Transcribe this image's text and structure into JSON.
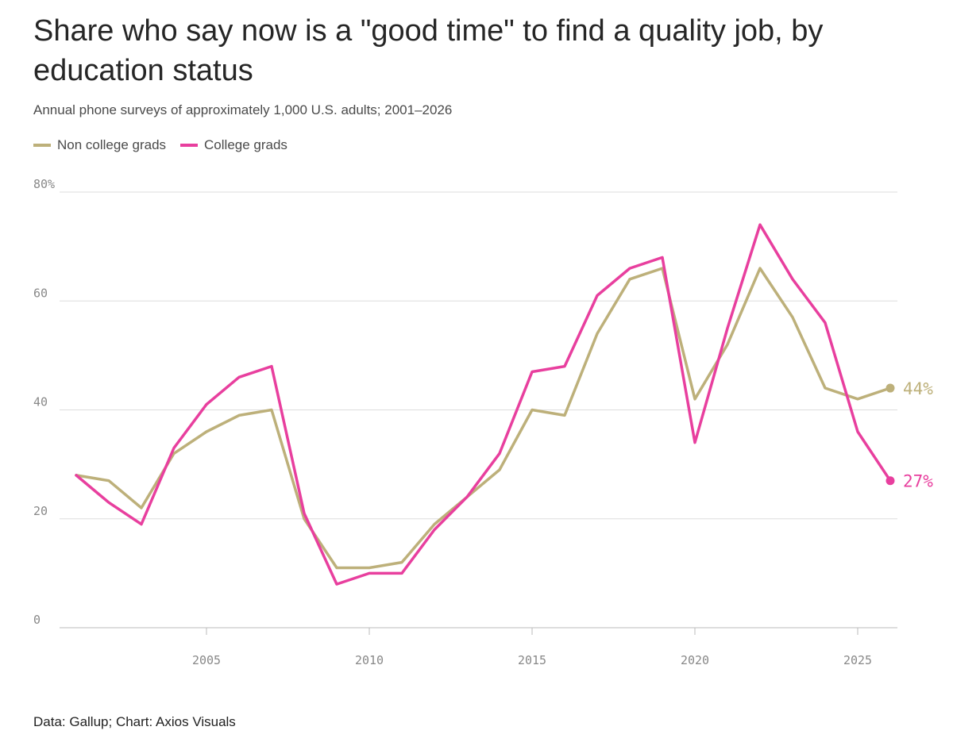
{
  "header": {
    "title": "Share who say now is a \"good time\" to find a quality job, by education status",
    "subtitle": "Annual phone surveys of approximately 1,000 U.S. adults; 2001–2026"
  },
  "footer": {
    "source": "Data: Gallup; Chart: Axios Visuals"
  },
  "chart_data": {
    "type": "line",
    "x": [
      2001,
      2002,
      2003,
      2004,
      2005,
      2006,
      2007,
      2008,
      2009,
      2010,
      2011,
      2012,
      2013,
      2014,
      2015,
      2016,
      2017,
      2018,
      2019,
      2020,
      2021,
      2022,
      2023,
      2024,
      2025,
      2026
    ],
    "series": [
      {
        "name": "Non college grads",
        "color": "#bdb07a",
        "values": [
          28,
          27,
          22,
          32,
          36,
          39,
          40,
          20,
          11,
          11,
          12,
          19,
          24,
          29,
          40,
          39,
          54,
          64,
          66,
          42,
          52,
          66,
          57,
          44,
          42,
          44
        ],
        "end_label": "44%"
      },
      {
        "name": "College grads",
        "color": "#e83f9e",
        "values": [
          28,
          23,
          19,
          33,
          41,
          46,
          48,
          21,
          8,
          10,
          10,
          18,
          24,
          32,
          47,
          48,
          61,
          66,
          68,
          34,
          55,
          74,
          64,
          56,
          36,
          27
        ],
        "end_label": "27%"
      }
    ],
    "y_ticks": [
      "0",
      "20",
      "40",
      "60",
      "80%"
    ],
    "y_tick_values": [
      0,
      20,
      40,
      60,
      80
    ],
    "x_ticks": [
      2005,
      2010,
      2015,
      2020,
      2025
    ],
    "ylim": [
      0,
      80
    ],
    "xlim": [
      2001,
      2026
    ],
    "grid": true,
    "legend_position": "top-left"
  }
}
